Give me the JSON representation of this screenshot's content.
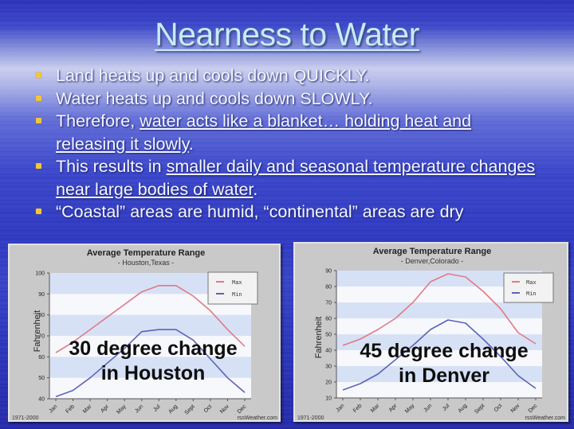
{
  "slide": {
    "title": "Nearness to Water",
    "bullets": [
      {
        "plain": "Land heats up and cools down QUICKLY.",
        "underlined": ""
      },
      {
        "plain": "Water heats up and cools down SLOWLY.",
        "underlined": ""
      },
      {
        "prefix": "Therefore, ",
        "underlined": "water acts like a blanket… holding heat and releasing it slowly",
        "suffix": "."
      },
      {
        "prefix": "This results in ",
        "underlined": "smaller daily and seasonal temperature changes near large bodies of water",
        "suffix": "."
      },
      {
        "plain": "“Coastal” areas are humid, “continental” areas are dry",
        "underlined": ""
      }
    ],
    "bullet_color": "#f2c63a",
    "title_color": "#c6ecf6"
  },
  "charts": {
    "houston": {
      "title": "Average Temperature Range",
      "subtitle": "- Houston,Texas -",
      "ylabel": "Fahrenheit",
      "footer_left": "1971-2000",
      "footer_right": "rssWeather.com",
      "overlay_line1": "30 degree change",
      "overlay_line2": "in Houston",
      "legend_max": "Max",
      "legend_min": "Min"
    },
    "denver": {
      "title": "Average Temperature Range",
      "subtitle": "- Denver,Colorado -",
      "ylabel": "Fahrenheit",
      "footer_left": "1971-2000",
      "footer_right": "rssWeather.com",
      "overlay_line1": "45 degree change",
      "overlay_line2": "in Denver",
      "legend_max": "Max",
      "legend_min": "Min"
    }
  },
  "chart_data": [
    {
      "type": "line",
      "title": "Average Temperature Range",
      "subtitle": "- Houston,Texas -",
      "xlabel": "",
      "ylabel": "Fahrenheit",
      "categories": [
        "Jan",
        "Feb",
        "Mar",
        "Apr",
        "May",
        "Jun",
        "Jul",
        "Aug",
        "Sept",
        "Oct",
        "Nov",
        "Dec"
      ],
      "ylim": [
        40,
        100
      ],
      "yticks": [
        40,
        50,
        60,
        70,
        80,
        90,
        100
      ],
      "grid": "alternating horizontal bands",
      "legend_position": "top-right",
      "series": [
        {
          "name": "Max",
          "color": "#e07a86",
          "values": [
            62,
            67,
            73,
            79,
            85,
            91,
            94,
            94,
            89,
            82,
            73,
            65
          ]
        },
        {
          "name": "Min",
          "color": "#5a64b8",
          "values": [
            41,
            44,
            50,
            57,
            64,
            72,
            73,
            73,
            68,
            59,
            50,
            43
          ]
        }
      ],
      "annotations": [
        "30 degree change in Houston",
        "1971-2000",
        "rssWeather.com"
      ]
    },
    {
      "type": "line",
      "title": "Average Temperature Range",
      "subtitle": "- Denver,Colorado -",
      "xlabel": "",
      "ylabel": "Fahrenheit",
      "categories": [
        "Jan",
        "Feb",
        "Mar",
        "Apr",
        "May",
        "Jun",
        "Jul",
        "Aug",
        "Sept",
        "Oct",
        "Nov",
        "Dec"
      ],
      "ylim": [
        10,
        90
      ],
      "yticks": [
        10,
        20,
        30,
        40,
        50,
        60,
        70,
        80,
        90
      ],
      "grid": "alternating horizontal bands",
      "legend_position": "top-right",
      "series": [
        {
          "name": "Max",
          "color": "#e07a86",
          "values": [
            43,
            47,
            53,
            60,
            70,
            83,
            88,
            86,
            77,
            66,
            51,
            44
          ]
        },
        {
          "name": "Min",
          "color": "#5a64b8",
          "values": [
            15,
            19,
            25,
            34,
            43,
            53,
            59,
            57,
            47,
            36,
            24,
            16
          ]
        }
      ],
      "annotations": [
        "45 degree change in Denver",
        "1971-2000",
        "rssWeather.com"
      ]
    }
  ]
}
